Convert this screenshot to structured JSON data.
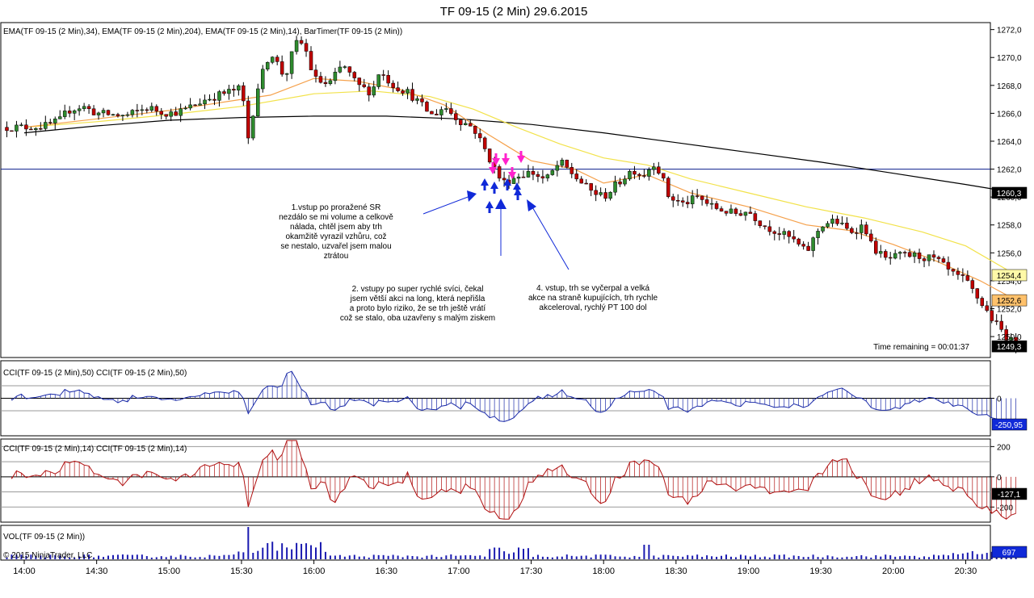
{
  "chart_data": {
    "type": "candlestick",
    "title": "TF 09-15 (2 Min)  29.6.2015",
    "x_ticks": [
      "14:00",
      "14:30",
      "15:00",
      "15:30",
      "16:00",
      "16:30",
      "17:00",
      "17:30",
      "18:00",
      "18:30",
      "19:00",
      "19:30",
      "20:00",
      "20:30"
    ],
    "price_panel": {
      "label": "EMA(TF 09-15 (2 Min),34), EMA(TF 09-15 (2 Min),204), EMA(TF 09-15 (2 Min),14), BarTimer(TF 09-15 (2 Min))",
      "ylim": [
        1248.5,
        1272.5
      ],
      "y_ticks": [
        "1272,0",
        "1270,0",
        "1268,0",
        "1266,0",
        "1264,0",
        "1262,0",
        "1260,0",
        "1258,0",
        "1256,0",
        "1254,0",
        "1252,0",
        "1250,0"
      ],
      "horizontal_line": 1262.0,
      "close_path": [
        [
          14.0,
          1265.0
        ],
        [
          14.15,
          1265.1
        ],
        [
          14.25,
          1265.5
        ],
        [
          14.3,
          1266.2
        ],
        [
          14.4,
          1266.5
        ],
        [
          14.5,
          1266.0
        ],
        [
          14.7,
          1265.8
        ],
        [
          14.85,
          1266.4
        ],
        [
          15.0,
          1266.0
        ],
        [
          15.1,
          1266.2
        ],
        [
          15.25,
          1267.0
        ],
        [
          15.4,
          1267.5
        ],
        [
          15.5,
          1267.8
        ],
        [
          15.55,
          1264.0
        ],
        [
          15.6,
          1267.5
        ],
        [
          15.7,
          1270.5
        ],
        [
          15.8,
          1268.5
        ],
        [
          15.87,
          1271.0
        ],
        [
          15.93,
          1271.0
        ],
        [
          16.0,
          1268.5
        ],
        [
          16.1,
          1268.0
        ],
        [
          16.2,
          1269.5
        ],
        [
          16.3,
          1268.0
        ],
        [
          16.4,
          1267.5
        ],
        [
          16.45,
          1269.0
        ],
        [
          16.55,
          1268.0
        ],
        [
          16.65,
          1267.5
        ],
        [
          16.75,
          1266.5
        ],
        [
          16.82,
          1265.8
        ],
        [
          16.9,
          1266.5
        ],
        [
          17.0,
          1265.5
        ],
        [
          17.1,
          1265.0
        ],
        [
          17.2,
          1263.0
        ],
        [
          17.3,
          1261.0
        ],
        [
          17.4,
          1261.5
        ],
        [
          17.5,
          1261.8
        ],
        [
          17.6,
          1261.2
        ],
        [
          17.7,
          1262.5
        ],
        [
          17.8,
          1261.5
        ],
        [
          17.9,
          1260.5
        ],
        [
          18.0,
          1260.0
        ],
        [
          18.1,
          1261.0
        ],
        [
          18.2,
          1262.0
        ],
        [
          18.27,
          1261.5
        ],
        [
          18.35,
          1262.5
        ],
        [
          18.4,
          1261.5
        ],
        [
          18.45,
          1260.0
        ],
        [
          18.55,
          1259.5
        ],
        [
          18.65,
          1260.0
        ],
        [
          18.75,
          1259.3
        ],
        [
          18.9,
          1258.8
        ],
        [
          19.0,
          1259.0
        ],
        [
          19.1,
          1258.0
        ],
        [
          19.2,
          1257.5
        ],
        [
          19.3,
          1257.0
        ],
        [
          19.4,
          1256.0
        ],
        [
          19.5,
          1258.0
        ],
        [
          19.6,
          1258.3
        ],
        [
          19.7,
          1257.5
        ],
        [
          19.8,
          1258.0
        ],
        [
          19.85,
          1256.5
        ],
        [
          19.95,
          1255.5
        ],
        [
          20.05,
          1255.8
        ],
        [
          20.15,
          1255.8
        ],
        [
          20.3,
          1255.5
        ],
        [
          20.4,
          1254.5
        ],
        [
          20.5,
          1254.0
        ],
        [
          20.6,
          1252.5
        ],
        [
          20.7,
          1251.0
        ],
        [
          20.8,
          1249.8
        ],
        [
          20.85,
          1249.3
        ]
      ],
      "ema14": [
        [
          14.0,
          1265.0
        ],
        [
          14.5,
          1265.6
        ],
        [
          15.0,
          1266.2
        ],
        [
          15.5,
          1267.0
        ],
        [
          15.7,
          1267.3
        ],
        [
          16.0,
          1268.5
        ],
        [
          16.3,
          1268.3
        ],
        [
          16.6,
          1267.7
        ],
        [
          16.9,
          1266.6
        ],
        [
          17.2,
          1264.5
        ],
        [
          17.5,
          1262.6
        ],
        [
          17.8,
          1262.0
        ],
        [
          18.0,
          1261.0
        ],
        [
          18.3,
          1261.6
        ],
        [
          18.6,
          1260.3
        ],
        [
          19.0,
          1259.3
        ],
        [
          19.4,
          1258.0
        ],
        [
          19.7,
          1257.6
        ],
        [
          20.0,
          1256.6
        ],
        [
          20.3,
          1255.4
        ],
        [
          20.6,
          1254.0
        ],
        [
          20.85,
          1252.6
        ]
      ],
      "ema34": [
        [
          14.0,
          1265.0
        ],
        [
          14.5,
          1265.4
        ],
        [
          15.0,
          1265.9
        ],
        [
          15.5,
          1266.5
        ],
        [
          16.0,
          1267.4
        ],
        [
          16.4,
          1267.6
        ],
        [
          16.8,
          1267.2
        ],
        [
          17.1,
          1266.3
        ],
        [
          17.4,
          1265.0
        ],
        [
          17.7,
          1263.8
        ],
        [
          18.0,
          1262.8
        ],
        [
          18.3,
          1262.3
        ],
        [
          18.6,
          1261.3
        ],
        [
          19.0,
          1260.3
        ],
        [
          19.4,
          1259.3
        ],
        [
          19.8,
          1258.5
        ],
        [
          20.2,
          1257.5
        ],
        [
          20.5,
          1256.5
        ],
        [
          20.85,
          1254.4
        ]
      ],
      "ema204": [
        [
          14.0,
          1264.6
        ],
        [
          14.5,
          1265.1
        ],
        [
          15.0,
          1265.5
        ],
        [
          15.5,
          1265.7
        ],
        [
          16.0,
          1265.8
        ],
        [
          16.5,
          1265.8
        ],
        [
          17.0,
          1265.6
        ],
        [
          17.5,
          1265.2
        ],
        [
          18.0,
          1264.6
        ],
        [
          18.5,
          1263.9
        ],
        [
          19.0,
          1263.2
        ],
        [
          19.5,
          1262.5
        ],
        [
          20.0,
          1261.7
        ],
        [
          20.5,
          1260.9
        ],
        [
          20.85,
          1260.3
        ]
      ],
      "price_badges": [
        {
          "text": "1260,3",
          "value": 1260.3,
          "bg": "#000000",
          "fg": "#ffffff"
        },
        {
          "text": "1254,4",
          "value": 1254.4,
          "bg": "#fff9a8",
          "fg": "#000000"
        },
        {
          "text": "1252,6",
          "value": 1252.6,
          "bg": "#ffc16b",
          "fg": "#000000"
        },
        {
          "text": "1249,3",
          "value": 1249.3,
          "bg": "#000000",
          "fg": "#ffffff"
        }
      ],
      "time_remaining": "Time remaining = 00:01:37",
      "annotations": [
        "1.vstup po proražené SR",
        "nezdálo se mi volume a celkově",
        "nálada, chtěl jsem aby trh",
        "okamžitě vyrazil vzhůru, což",
        "se nestalo, uzvařel jsem malou",
        "ztrátou",
        "2. vstupy po super rychlé svíci, čekal",
        "jsem větší akci na long, která nepřišla",
        "a proto bylo riziko, že se trh ještě vrátí",
        "což se stalo, oba uzavřeny s malým ziskem",
        "4. vstup, trh se vyčerpal a velká",
        "akce na straně kupujících, trh rychle",
        "akceleroval, rychlý PT 100 dol"
      ]
    },
    "cci50_panel": {
      "label": "CCI(TF 09-15 (2 Min),50) CCI(TF 09-15 (2 Min),50)",
      "ylim": [
        -300,
        300
      ],
      "y_ticks": [
        "0"
      ],
      "levels": [
        -100,
        0,
        100
      ],
      "last_value": "-250,95"
    },
    "cci14_panel": {
      "label": "CCI(TF 09-15 (2 Min),14) CCI(TF 09-15 (2 Min),14)",
      "ylim": [
        -300,
        250
      ],
      "y_ticks": [
        "200",
        "0",
        "-200"
      ],
      "levels": [
        -200,
        -100,
        0,
        100,
        200
      ],
      "last_value": "-127,1"
    },
    "volume_panel": {
      "label": "VOL(TF 09-15 (2 Min))",
      "copyright": "© 2015 NinjaTrader, LLC",
      "last_value": "697"
    },
    "colors": {
      "up": "#2e8b2e",
      "down": "#c00000",
      "ema14": "#f5a04a",
      "ema34": "#f2e24a",
      "ema204": "#000000",
      "hline": "#0a1c8c",
      "cci50": "#1a2aa8",
      "cci14": "#b01010",
      "volume": "#1a1ab0",
      "arrow_blue": "#1029d8",
      "arrow_magenta": "#ff22cc"
    }
  }
}
